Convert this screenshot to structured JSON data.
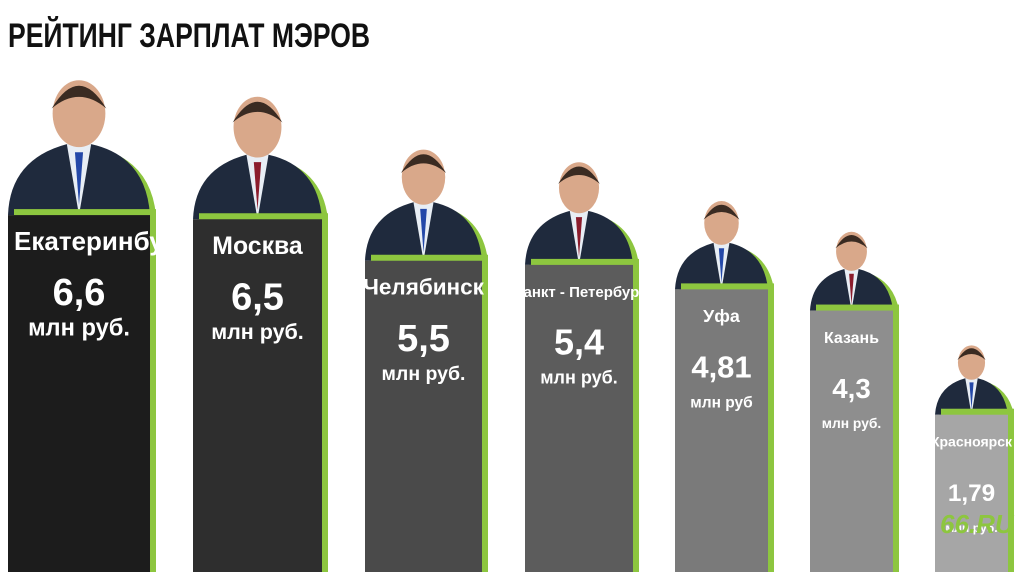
{
  "chart_data": {
    "type": "bar",
    "title": "РЕЙТИНГ ЗАРПЛАТ МЭРОВ",
    "categories": [
      "Екатеринбург",
      "Москва",
      "Челябинск",
      "Санкт - Петербург",
      "Уфа",
      "Казань",
      "Красноярск"
    ],
    "values": [
      6.6,
      6.5,
      5.5,
      5.4,
      4.81,
      4.3,
      1.79
    ],
    "value_labels": [
      "6,6",
      "6,5",
      "5,5",
      "5,4",
      "4,81",
      "4,3",
      "1,79"
    ],
    "units": [
      "млн руб.",
      "млн руб.",
      "млн руб.",
      "млн руб.",
      "млн руб",
      "млн руб.",
      "млн руб."
    ],
    "colors": [
      "#1c1c1c",
      "#2e2e2e",
      "#4a4a4a",
      "#5c5c5c",
      "#7a7a7a",
      "#8e8e8e",
      "#a6a6a6"
    ],
    "shadow_color": "#8dc63f",
    "ylim": [
      -2,
      8
    ],
    "logo": "66.RU"
  }
}
